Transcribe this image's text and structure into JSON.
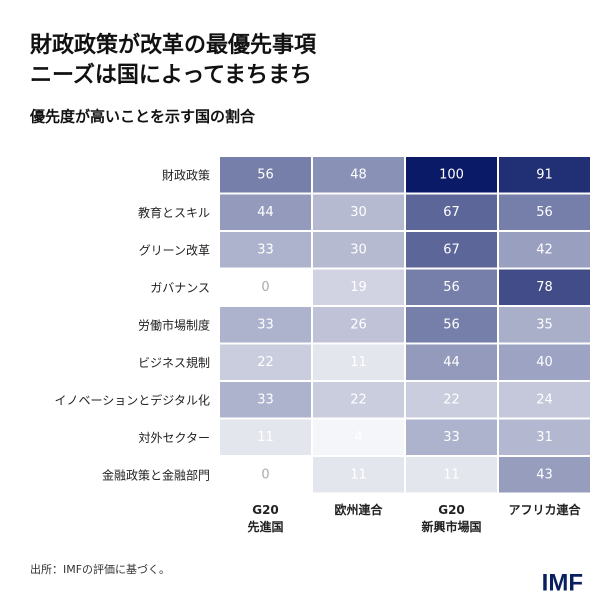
{
  "chart_data": {
    "type": "heatmap",
    "title": [
      "財政政策が改革の最優先事項",
      "ニーズは国によってまちまち"
    ],
    "subtitle": "優先度が高いことを示す国の割合",
    "rows": [
      "財政政策",
      "教育とスキル",
      "グリーン改革",
      "ガバナンス",
      "労働市場制度",
      "ビジネス規制",
      "イノベーションとデジタル化",
      "対外セクター",
      "金融政策と金融部門"
    ],
    "columns": [
      [
        "G20",
        "先進国"
      ],
      [
        "欧州連合"
      ],
      [
        "G20",
        "新興市場国"
      ],
      [
        "アフリカ連合"
      ]
    ],
    "values": [
      [
        56,
        48,
        100,
        91
      ],
      [
        44,
        30,
        67,
        56
      ],
      [
        33,
        30,
        67,
        42
      ],
      [
        0,
        19,
        56,
        78
      ],
      [
        33,
        26,
        56,
        35
      ],
      [
        22,
        11,
        44,
        40
      ],
      [
        33,
        22,
        22,
        24
      ],
      [
        11,
        4,
        33,
        31
      ],
      [
        0,
        11,
        11,
        43
      ]
    ],
    "vlim": [
      0,
      100
    ],
    "color_scale": [
      "#ffffff",
      "#0b1a66"
    ],
    "note": "出所：IMFの評価に基づく。",
    "logo": "IMF"
  }
}
